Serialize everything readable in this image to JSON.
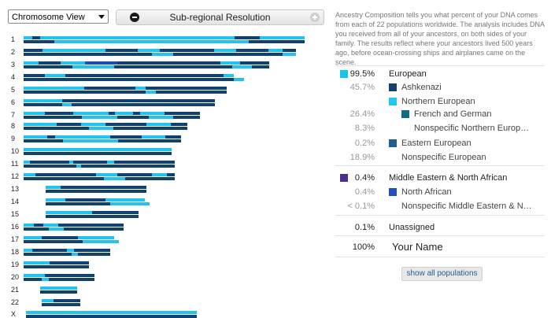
{
  "controls": {
    "view_select": "Chromosome View",
    "subregional_label": "Sub-regional Resolution"
  },
  "colors": {
    "european": "#14c6ef",
    "ashkenazi": "#12416d",
    "northern_european": "#24c6ef",
    "french_german": "#166a87",
    "eastern_european": "#1f5d93",
    "middle_eastern": "#4b2f91",
    "north_african": "#234fbe"
  },
  "intro": "Ancestry Composition tells you what percent of your DNA comes from each of 22 populations worldwide. The analysis includes DNA you received from all of your ancestors, on both sides of your family. The results reflect where your ancestors lived 500 years ago, before ocean-crossing ships and airplanes came on the scene.",
  "populations": [
    {
      "pct": "99.5%",
      "name": "European",
      "swatch": "#14c6ef",
      "strong": true
    },
    {
      "pct": "45.7%",
      "name": "Ashkenazi",
      "swatch": "#12416d"
    },
    {
      "pct": "",
      "name": "Northern European",
      "swatch": "#24c6ef"
    },
    {
      "pct": "26.4%",
      "name": "French and German",
      "swatch": "#166a87"
    },
    {
      "pct": "8.3%",
      "name": "Nonspecific Northern Europ…",
      "swatch": ""
    },
    {
      "pct": "0.2%",
      "name": "Eastern European",
      "swatch": "#1f5d93"
    },
    {
      "pct": "18.9%",
      "name": "Nonspecific European",
      "swatch": ""
    },
    {
      "pct": "0.4%",
      "name": "Middle Eastern & North African",
      "swatch": "#4b2f91",
      "strong": true
    },
    {
      "pct": "0.4%",
      "name": "North African",
      "swatch": "#234fbe"
    },
    {
      "pct": "< 0.1%",
      "name": "Nonspecific Middle Eastern & N…",
      "swatch": ""
    },
    {
      "pct": "0.1%",
      "name": "Unassigned",
      "swatch": "",
      "strong": true
    },
    {
      "pct": "100%",
      "name": "Your Name",
      "swatch": "",
      "strong": true
    }
  ],
  "show_all": "show all populations",
  "chromosome_labels": [
    "1",
    "2",
    "3",
    "4",
    "5",
    "6",
    "7",
    "8",
    "9",
    "10",
    "11",
    "12",
    "13",
    "14",
    "15",
    "16",
    "17",
    "18",
    "19",
    "20",
    "21",
    "22",
    "X"
  ]
}
